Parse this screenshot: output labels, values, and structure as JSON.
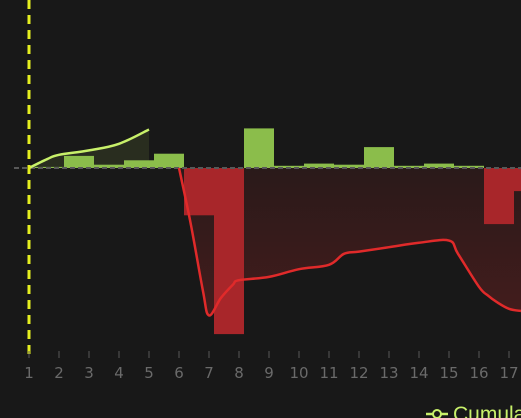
{
  "chart_data": {
    "type": "bar",
    "categories": [
      "1",
      "2",
      "3",
      "4",
      "5",
      "6",
      "7",
      "8",
      "9",
      "10",
      "11",
      "12",
      "13",
      "14",
      "15",
      "16",
      "17"
    ],
    "series": [
      {
        "name": "",
        "kind": "bar",
        "values": [
          0.5,
          5.5,
          1.5,
          3.5,
          6.5,
          -21.5,
          -75.5,
          18.0,
          1.0,
          2.0,
          1.5,
          9.5,
          1.0,
          2.0,
          1.0,
          -25.5,
          -10.5
        ]
      },
      {
        "name": "Cumulative",
        "kind": "line-positive",
        "x": [
          1,
          1.6,
          2,
          3,
          4,
          5
        ],
        "values": [
          0,
          4,
          6,
          8,
          11,
          17.5
        ]
      },
      {
        "name": "",
        "kind": "line-negative",
        "x": [
          6,
          6.4,
          6.8,
          7,
          7.4,
          7.8,
          8,
          9,
          10,
          11,
          11.5,
          12,
          13,
          14,
          15,
          15.3,
          16,
          16.3,
          16.6,
          17,
          17.4
        ],
        "values": [
          0,
          -26,
          -56,
          -67,
          -59,
          -53,
          -51,
          -49.5,
          -46,
          -44,
          -39,
          -38,
          -36,
          -34,
          -33,
          -39,
          -54,
          -58,
          -61,
          -64,
          -65
        ]
      }
    ],
    "ylim": [
      -80,
      20
    ],
    "xlim": [
      1,
      17
    ],
    "xlabel": "",
    "ylabel": "",
    "grid": false,
    "reference_line": {
      "x": 1,
      "style": "dashed",
      "color": "#e6f020"
    },
    "legend": {
      "position": "bottom-right",
      "entries": [
        "Cumulative"
      ]
    },
    "colors": {
      "positive_bar": "#8bbd4b",
      "negative_bar": "#a8262a",
      "positive_line": "#c8f06a",
      "negative_line": "#e02a2a",
      "axis": "#585858",
      "tick_label": "#6a6a6a",
      "legend_text": "#c8f06a"
    }
  }
}
